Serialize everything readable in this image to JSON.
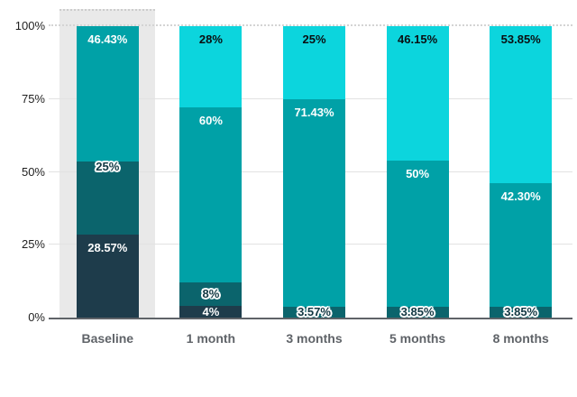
{
  "chart_data": {
    "type": "bar",
    "stacked": true,
    "orientation": "vertical",
    "title": "",
    "xlabel": "",
    "ylabel": "",
    "categories": [
      "Baseline",
      "1 month",
      "3 months",
      "5 months",
      "8 months"
    ],
    "series": [
      {
        "name": "dark-navy",
        "color": "#1e3c4b",
        "label_style": "white",
        "values": [
          28.57,
          4,
          0,
          0,
          0
        ],
        "labels": [
          "28.57%",
          "4%",
          "",
          "",
          ""
        ]
      },
      {
        "name": "dark-teal",
        "color": "#0b646c",
        "label_style": "outlined",
        "values": [
          25,
          8,
          3.57,
          3.85,
          3.85
        ],
        "labels": [
          "25%",
          "8%",
          "3.57%",
          "3.85%",
          "3.85%"
        ]
      },
      {
        "name": "teal",
        "color": "#00a1a7",
        "label_style": "white",
        "values": [
          46.43,
          60,
          71.43,
          50,
          42.3
        ],
        "labels": [
          "46.43%",
          "60%",
          "71.43%",
          "50%",
          "42.30%"
        ]
      },
      {
        "name": "cyan",
        "color": "#0cd5dd",
        "label_style": "dark",
        "values": [
          0,
          28,
          25,
          46.15,
          53.85
        ],
        "labels": [
          "",
          "28%",
          "25%",
          "46.15%",
          "53.85%"
        ]
      }
    ],
    "y_axis": {
      "ylim": [
        0,
        100
      ],
      "ticks": [
        {
          "value": 0,
          "label": "0%"
        },
        {
          "value": 25,
          "label": "25%"
        },
        {
          "value": 50,
          "label": "50%"
        },
        {
          "value": 75,
          "label": "75%"
        },
        {
          "value": 100,
          "label": "100%"
        }
      ]
    },
    "grid": true,
    "legend": "none",
    "highlight_band": {
      "category": "Baseline"
    }
  },
  "colors": {
    "background": "#ffffff",
    "band_fill": "#e9e9e9",
    "band_border": "#cccccc",
    "gridline": "#e2e2e2",
    "gridline_dashed": "#d4d4d4",
    "axis_line": "#5f6368",
    "y_tick_label": "#1f1f1f",
    "x_category_label": "#5f6368",
    "label_white": "#ffffff",
    "label_dark": "#0a0f12",
    "label_outlined_text": "#123843"
  }
}
